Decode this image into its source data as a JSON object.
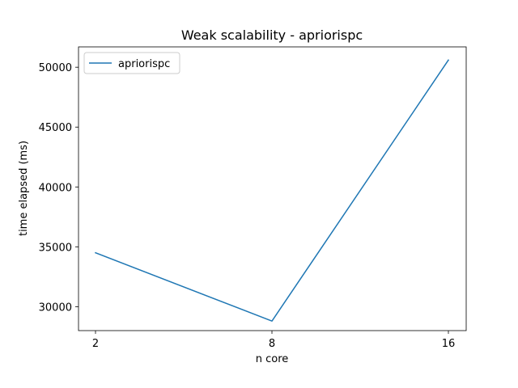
{
  "chart_data": {
    "type": "line",
    "title": "Weak scalability - apriorispc",
    "xlabel": "n core",
    "ylabel": "time elapsed (ms)",
    "categories": [
      "2",
      "8",
      "16"
    ],
    "series": [
      {
        "name": "apriorispc",
        "values": [
          34500,
          28800,
          50600
        ],
        "color": "#1f77b4"
      }
    ],
    "ylim": [
      28000,
      51700
    ],
    "yticks": [
      30000,
      35000,
      40000,
      45000,
      50000
    ],
    "ytick_labels": [
      "30000",
      "35000",
      "40000",
      "45000",
      "50000"
    ],
    "legend": {
      "placement": "top-left"
    },
    "grid": false
  }
}
